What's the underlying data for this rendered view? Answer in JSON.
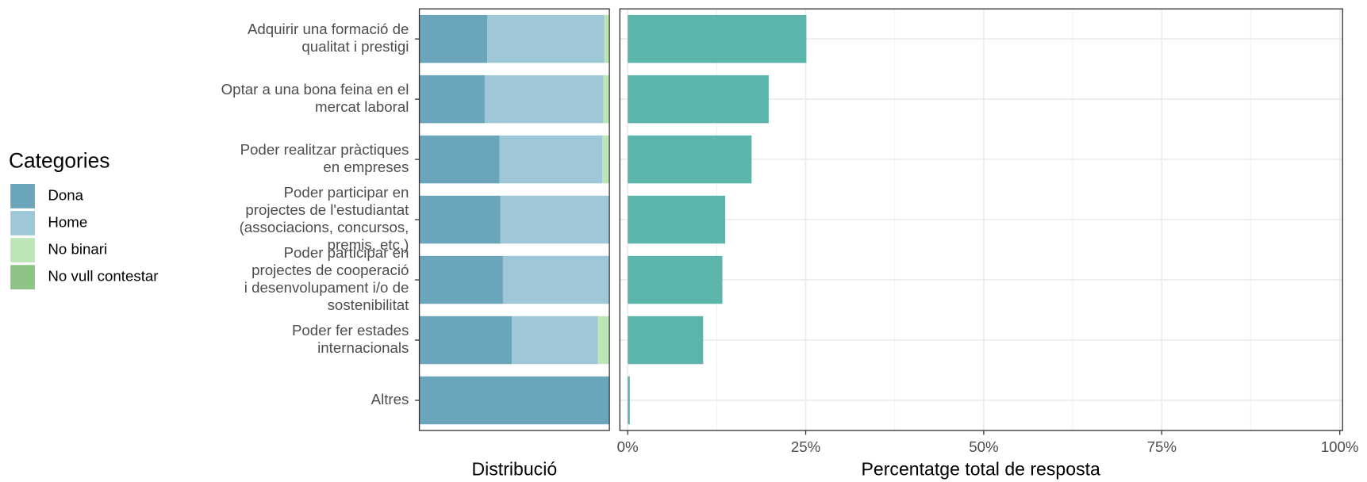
{
  "chart_data": [
    {
      "type": "stacked_bar",
      "orientation": "horizontal",
      "x_label": "Distribució",
      "legend_title": "Categories",
      "legend_position": "left",
      "categories": [
        "Adquirir una formació de\nqualitat i prestigi",
        "Optar a una bona feina en el\nmercat laboral",
        "Poder realitzar pràctiques\nen empreses",
        "Poder participar en\nprojectes de l'estudiantat\n(associacions, concursos,\npremis, etc.)",
        "Poder participar en\nprojectes de cooperació\ni desenvolupament i/o de\nsostenibilitat",
        "Poder fer estades\ninternacionals",
        "Altres"
      ],
      "xlim": [
        0,
        100
      ],
      "series": [
        {
          "name": "Dona",
          "color": "#6aa5bb",
          "values": [
            35.8,
            34.4,
            42.2,
            42.7,
            44.0,
            48.6,
            100
          ]
        },
        {
          "name": "Home",
          "color": "#9ec8d8",
          "values": [
            61.5,
            62.4,
            54.1,
            57.3,
            56.0,
            45.4,
            0
          ]
        },
        {
          "name": "No binari",
          "color": "#bde5b5",
          "values": [
            2.7,
            3.2,
            3.7,
            0,
            0,
            6.0,
            0
          ]
        },
        {
          "name": "No vull contestar",
          "color": "#8dc486",
          "values": [
            0,
            0,
            0,
            0,
            0,
            0,
            0
          ]
        }
      ]
    },
    {
      "type": "bar",
      "orientation": "horizontal",
      "x_label": "Percentatge total de resposta",
      "color": "#5bb5aa",
      "grid": true,
      "values": [
        25.1,
        19.8,
        17.4,
        13.7,
        13.3,
        10.6,
        0.3
      ],
      "xlim": [
        -1.1,
        100.4
      ],
      "xticks": [
        {
          "value": 0,
          "label": "0%"
        },
        {
          "value": 25,
          "label": "25%"
        },
        {
          "value": 50,
          "label": "50%"
        },
        {
          "value": 75,
          "label": "75%"
        },
        {
          "value": 100,
          "label": "100%"
        }
      ]
    }
  ]
}
